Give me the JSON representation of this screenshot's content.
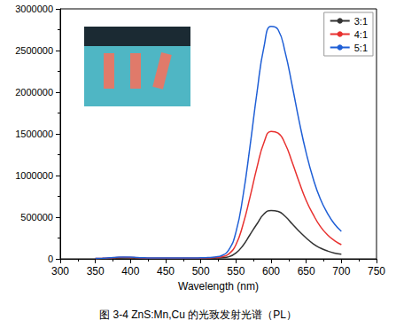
{
  "chart_data": {
    "type": "line",
    "caption": "图 3-4 ZnS:Mn,Cu 的光致发射光谱（PL）",
    "x_label": "Wavelength (nm)",
    "x": [
      350,
      360,
      370,
      380,
      390,
      400,
      410,
      420,
      430,
      440,
      450,
      460,
      470,
      480,
      490,
      500,
      510,
      520,
      530,
      540,
      550,
      560,
      570,
      580,
      590,
      600,
      610,
      620,
      630,
      640,
      650,
      660,
      670,
      680,
      690,
      700
    ],
    "series": [
      {
        "name": "3:1",
        "color": "#333333",
        "values": [
          2000,
          3000,
          5000,
          8000,
          10000,
          10000,
          8000,
          6000,
          5000,
          5000,
          5000,
          5000,
          5000,
          5000,
          5000,
          6000,
          7000,
          9000,
          13000,
          25000,
          70000,
          160000,
          290000,
          420000,
          540000,
          580000,
          570000,
          510000,
          420000,
          330000,
          250000,
          180000,
          130000,
          95000,
          70000,
          55000
        ]
      },
      {
        "name": "4:1",
        "color": "#e8312f",
        "values": [
          5000,
          7000,
          10000,
          15000,
          18000,
          17000,
          13000,
          10000,
          8000,
          8000,
          8000,
          8000,
          8000,
          8000,
          8000,
          9000,
          11000,
          15000,
          25000,
          60000,
          170000,
          410000,
          740000,
          1100000,
          1400000,
          1530000,
          1510000,
          1380000,
          1160000,
          920000,
          700000,
          530000,
          390000,
          290000,
          220000,
          170000
        ]
      },
      {
        "name": "5:1",
        "color": "#1f5fd6",
        "values": [
          5000,
          8000,
          12000,
          18000,
          22000,
          20000,
          15000,
          12000,
          10000,
          10000,
          10000,
          10000,
          10000,
          10000,
          10000,
          12000,
          15000,
          22000,
          40000,
          110000,
          320000,
          750000,
          1350000,
          2000000,
          2550000,
          2790000,
          2750000,
          2480000,
          2080000,
          1650000,
          1270000,
          960000,
          720000,
          550000,
          420000,
          330000
        ]
      }
    ],
    "xlim": [
      300,
      750
    ],
    "xticks": [
      300,
      350,
      400,
      450,
      500,
      550,
      600,
      650,
      700,
      750
    ],
    "ylim": [
      0,
      3000000
    ],
    "yticks": [
      0,
      500000,
      1000000,
      1500000,
      2000000,
      2500000,
      3000000
    ],
    "grid": false,
    "legend": "upper right",
    "line_style": "solid"
  }
}
